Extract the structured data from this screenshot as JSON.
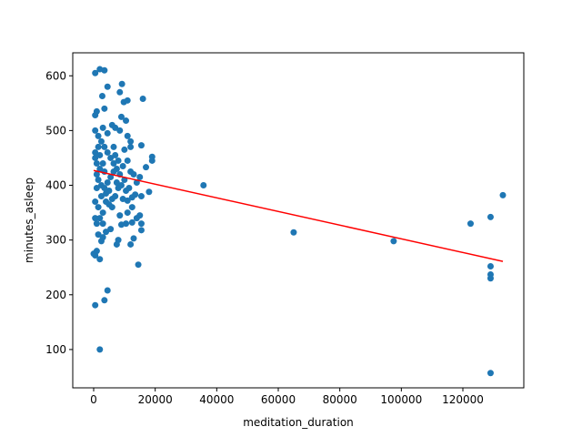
{
  "chart_data": {
    "type": "scatter",
    "x_label": "meditation_duration",
    "y_label": "minutes_asleep",
    "color": "#1f77b4",
    "x": [
      500,
      2000,
      3500,
      4500,
      9200,
      9800,
      11000,
      16000,
      8500,
      2800,
      3500,
      1000,
      500,
      9000,
      10500,
      6000,
      7000,
      8500,
      12000,
      11000,
      15500,
      19000,
      19000,
      17000,
      12000,
      13000,
      15000,
      14000,
      18000,
      13500,
      15500,
      12500,
      11000,
      12500,
      11000,
      15000,
      14000,
      12500,
      10500,
      9000,
      15500,
      15500,
      13000,
      12000,
      8000,
      7500,
      8500,
      5500,
      4000,
      3000,
      2500,
      1500,
      1000,
      500,
      0,
      2000,
      500,
      4500,
      3500,
      2000,
      14500,
      1000,
      2000,
      3000,
      1500,
      500,
      2500,
      4000,
      5000,
      6000,
      7000,
      8000,
      9000,
      10000,
      8500,
      7500,
      6500,
      5500,
      4500,
      3500,
      2500,
      1500,
      500,
      3000,
      4500,
      6500,
      7000,
      8000,
      9500,
      11000,
      10000,
      12000,
      1000,
      2000,
      3000,
      500,
      1500,
      2500,
      3500,
      4500,
      5500,
      6500,
      7500,
      6000,
      5000,
      4000,
      3000,
      500,
      1000,
      2000,
      3500,
      9500,
      10500,
      11500,
      500,
      1000,
      1500,
      35700,
      65000,
      97500,
      122500,
      129000,
      129000,
      129000,
      129000,
      129000,
      133000
    ],
    "y": [
      605,
      612,
      610,
      580,
      585,
      552,
      555,
      558,
      570,
      563,
      540,
      535,
      528,
      525,
      518,
      510,
      505,
      500,
      480,
      490,
      473,
      452,
      445,
      433,
      425,
      420,
      415,
      405,
      388,
      383,
      380,
      378,
      372,
      360,
      350,
      345,
      340,
      332,
      330,
      328,
      330,
      318,
      303,
      292,
      300,
      292,
      345,
      320,
      315,
      305,
      298,
      310,
      280,
      272,
      275,
      265,
      181,
      208,
      190,
      100,
      255,
      330,
      340,
      350,
      360,
      370,
      380,
      385,
      390,
      375,
      380,
      395,
      400,
      410,
      420,
      430,
      440,
      450,
      460,
      470,
      480,
      490,
      500,
      505,
      495,
      470,
      455,
      445,
      435,
      445,
      465,
      470,
      420,
      430,
      440,
      450,
      410,
      400,
      395,
      405,
      415,
      425,
      405,
      360,
      365,
      370,
      330,
      340,
      395,
      455,
      425,
      375,
      390,
      395,
      460,
      440,
      470,
      400,
      314,
      298,
      330,
      342,
      252,
      237,
      230,
      57,
      382
    ],
    "fit_line": {
      "x": [
        0,
        133000
      ],
      "y": [
        427,
        261
      ],
      "color": "red"
    },
    "xlim": [
      -6800,
      139800
    ],
    "ylim": [
      30,
      642
    ],
    "xticks": [
      0,
      20000,
      40000,
      60000,
      80000,
      100000,
      120000
    ],
    "yticks": [
      100,
      200,
      300,
      400,
      500,
      600
    ]
  }
}
